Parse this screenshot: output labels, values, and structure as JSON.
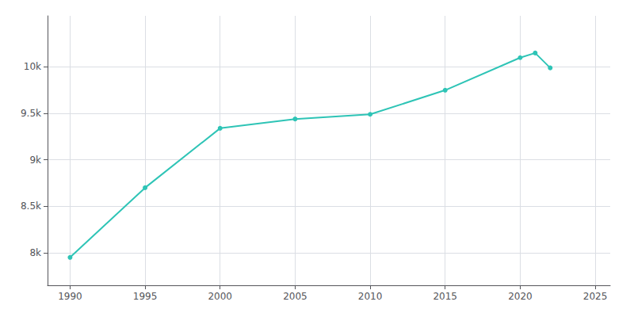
{
  "chart_data": {
    "type": "line",
    "x": [
      1990,
      1995,
      2000,
      2005,
      2010,
      2015,
      2020,
      2021,
      2022
    ],
    "values": [
      7950,
      8700,
      9340,
      9440,
      9490,
      9750,
      10100,
      10150,
      9990
    ],
    "color": "#2ec4b6",
    "marker": "circle",
    "xlim": [
      1988.5,
      2026
    ],
    "xticks": [
      1990,
      1995,
      2000,
      2005,
      2010,
      2015,
      2020,
      2025
    ],
    "ylim": [
      7650,
      10550
    ],
    "yticks": [
      {
        "value": 8000,
        "label": "8k"
      },
      {
        "value": 8500,
        "label": "8.5k"
      },
      {
        "value": 9000,
        "label": "9k"
      },
      {
        "value": 9500,
        "label": "9.5k"
      },
      {
        "value": 10000,
        "label": "10k"
      }
    ],
    "grid": true
  }
}
